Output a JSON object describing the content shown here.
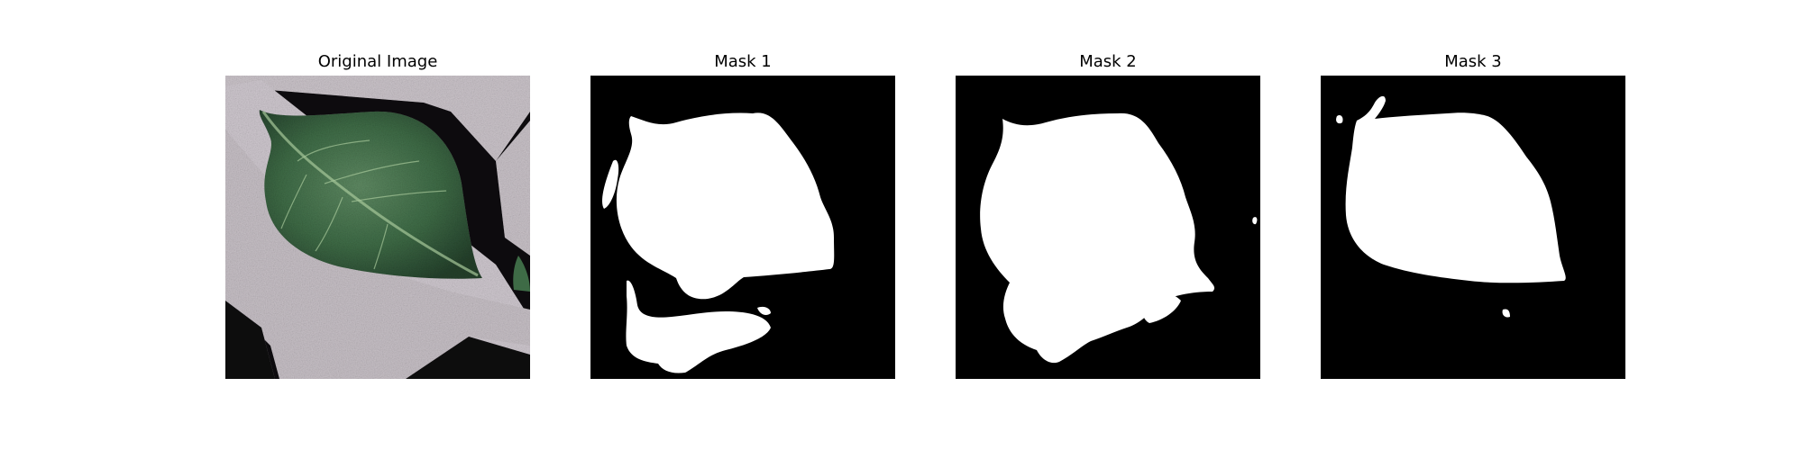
{
  "panels": [
    {
      "title": "Original Image"
    },
    {
      "title": "Mask 1"
    },
    {
      "title": "Mask 2"
    },
    {
      "title": "Mask 3"
    }
  ]
}
